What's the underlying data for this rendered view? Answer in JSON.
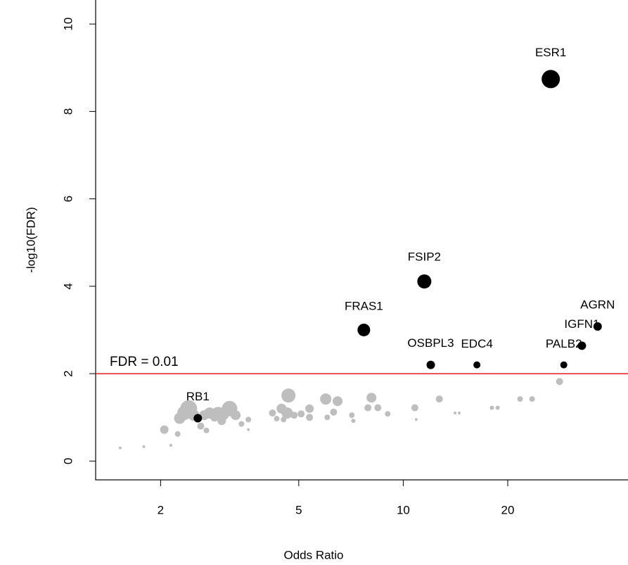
{
  "chart_data": {
    "type": "scatter",
    "x_label": "Odds Ratio",
    "y_label": "-log10(FDR)",
    "xlim": [
      1.3,
      44.4
    ],
    "ylim": [
      -0.43,
      10.55
    ],
    "log_x": true,
    "xticks": [
      2,
      5,
      10,
      20
    ],
    "yticks": [
      0,
      2,
      4,
      6,
      8,
      10
    ],
    "hline": {
      "y": 2,
      "label": "FDR = 0.01",
      "color": "#e41a1c"
    },
    "series": [
      {
        "color": "#000000",
        "labels": [
          "ESR1",
          "FSIP2",
          "FRAS1",
          "OSBPL3",
          "EDC4",
          "PALB2",
          "IGFN1",
          "AGRN",
          "RB1"
        ],
        "x": [
          26.6,
          11.5,
          7.7,
          12.0,
          16.3,
          29.0,
          32.7,
          36.3,
          2.56
        ],
        "values": [
          8.74,
          4.11,
          3.0,
          2.2,
          2.2,
          2.2,
          2.64,
          3.08,
          0.98
        ],
        "sizes": [
          13,
          10,
          9,
          6,
          5,
          5,
          6,
          6,
          6
        ]
      },
      {
        "color": "#bebebe",
        "x": [
          1.53,
          1.79,
          2.05,
          2.14,
          2.24,
          2.27,
          2.34,
          2.41,
          2.49,
          2.61,
          2.67,
          2.71,
          2.77,
          2.86,
          2.93,
          3.0,
          3.04,
          3.16,
          3.29,
          3.42,
          3.58,
          3.58,
          4.2,
          4.32,
          4.46,
          4.52,
          4.63,
          4.67,
          4.85,
          5.08,
          5.37,
          5.37,
          5.98,
          6.04,
          6.3,
          6.47,
          7.11,
          7.18,
          7.91,
          8.1,
          8.45,
          9.02,
          10.8,
          10.9,
          12.7,
          14.1,
          14.5,
          18.0,
          18.7,
          21.7,
          23.5,
          28.2
        ],
        "values": [
          0.3,
          0.33,
          0.72,
          0.36,
          0.62,
          0.98,
          1.1,
          1.2,
          1.05,
          0.8,
          1.05,
          0.7,
          1.1,
          1.0,
          1.08,
          0.92,
          1.05,
          1.2,
          1.05,
          0.85,
          0.72,
          0.95,
          1.1,
          0.97,
          1.2,
          0.95,
          1.1,
          1.5,
          1.05,
          1.08,
          1.2,
          1.0,
          1.42,
          1.0,
          1.12,
          1.37,
          1.05,
          0.92,
          1.22,
          1.45,
          1.22,
          1.08,
          1.22,
          0.95,
          1.42,
          1.1,
          1.1,
          1.22,
          1.22,
          1.42,
          1.42,
          1.82
        ],
        "sizes": [
          2,
          2,
          6,
          2,
          4,
          8,
          10,
          12,
          8,
          5,
          7,
          4,
          8,
          6,
          10,
          6,
          7,
          11,
          7,
          4,
          2,
          4,
          5,
          4,
          7,
          4,
          8,
          10,
          5,
          5,
          6,
          5,
          8,
          4,
          5,
          7,
          4,
          3,
          5,
          7,
          5,
          4,
          5,
          2,
          5,
          2,
          2,
          3,
          3,
          4,
          4,
          5
        ]
      }
    ]
  }
}
